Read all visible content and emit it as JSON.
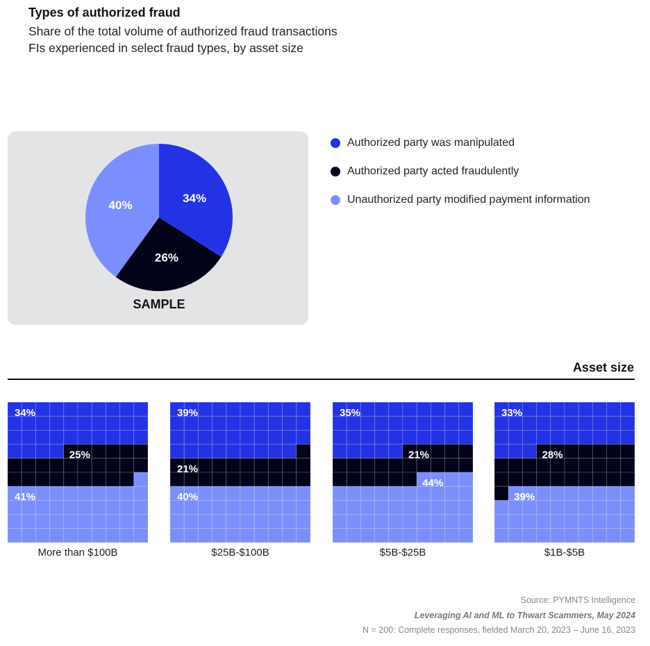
{
  "header": {
    "title": "Types of authorized fraud",
    "subtitle_line1": "Share of the total volume of authorized fraud transactions",
    "subtitle_line2": "FIs experienced in select fraud types, by asset size"
  },
  "colors": {
    "manipulated": "#2432e6",
    "fraudulent": "#020218",
    "unauthorized": "#7b8ffc"
  },
  "legend": [
    "Authorized party was manipulated",
    "Authorized party acted fraudulently",
    "Unauthorized party modified payment information"
  ],
  "asset_label": "Asset size",
  "chart_data": [
    {
      "type": "pie",
      "title": "SAMPLE",
      "categories": [
        "Authorized party was manipulated",
        "Authorized party acted fraudulently",
        "Unauthorized party modified payment information"
      ],
      "values": [
        34,
        26,
        40
      ],
      "labels": [
        "34%",
        "26%",
        "40%"
      ]
    },
    {
      "type": "waffle",
      "groups": [
        {
          "name": "More than $100B",
          "values": [
            34,
            25,
            41
          ],
          "labels": [
            "34%",
            "25%",
            "41%"
          ]
        },
        {
          "name": "$25B-$100B",
          "values": [
            39,
            21,
            40
          ],
          "labels": [
            "39%",
            "21%",
            "40%"
          ]
        },
        {
          "name": "$5B-$25B",
          "values": [
            35,
            21,
            44
          ],
          "labels": [
            "35%",
            "21%",
            "44%"
          ]
        },
        {
          "name": "$1B-$5B",
          "values": [
            33,
            28,
            39
          ],
          "labels": [
            "33%",
            "28%",
            "39%"
          ]
        }
      ]
    }
  ],
  "footer": {
    "source": "Source: PYMNTS Intelligence",
    "report": "Leveraging AI and ML to Thwart Scammers, May 2024",
    "note": "N = 200: Complete responses, fielded March 20, 2023 – June 16, 2023"
  }
}
